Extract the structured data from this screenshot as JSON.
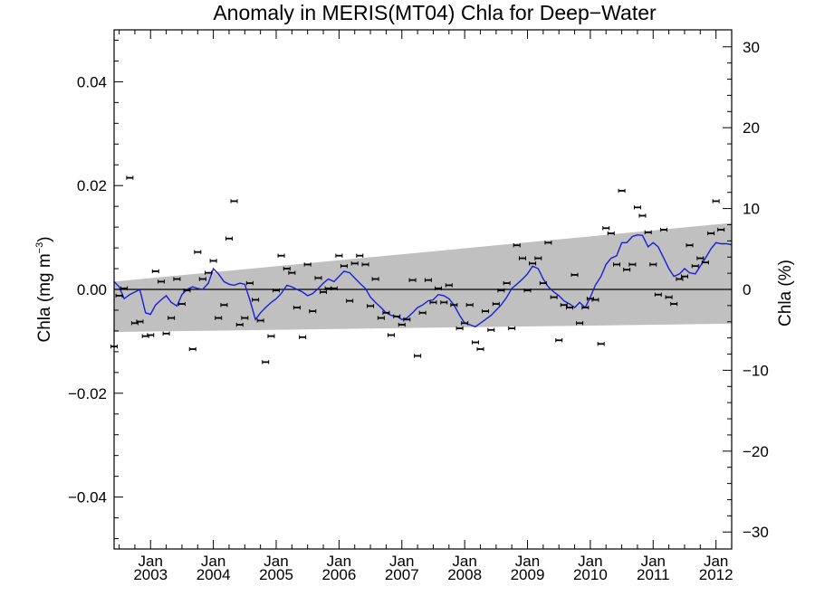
{
  "chart_data": {
    "type": "scatter",
    "title": "Anomaly in MERIS(MT04) Chla for Deep−Water",
    "ylabel_left": "Chla (mg m",
    "ylabel_left_sup": "−3",
    "ylabel_left_close": ")",
    "ylabel_right": "Chla (%)",
    "xlim": [
      2002.42,
      2012.25
    ],
    "ylim_left": [
      -0.05,
      0.05
    ],
    "ylim_right": [
      -32.1,
      32.1
    ],
    "x_ticks": [
      {
        "x": 2003.0,
        "label": "Jan",
        "year": "2003"
      },
      {
        "x": 2004.0,
        "label": "Jan",
        "year": "2004"
      },
      {
        "x": 2005.0,
        "label": "Jan",
        "year": "2005"
      },
      {
        "x": 2006.0,
        "label": "Jan",
        "year": "2006"
      },
      {
        "x": 2007.0,
        "label": "Jan",
        "year": "2007"
      },
      {
        "x": 2008.0,
        "label": "Jan",
        "year": "2008"
      },
      {
        "x": 2009.0,
        "label": "Jan",
        "year": "2009"
      },
      {
        "x": 2010.0,
        "label": "Jan",
        "year": "2010"
      },
      {
        "x": 2011.0,
        "label": "Jan",
        "year": "2011"
      },
      {
        "x": 2012.0,
        "label": "Jan",
        "year": "2012"
      }
    ],
    "y_ticks_left": [
      {
        "v": 0.04,
        "label": "0.04"
      },
      {
        "v": 0.02,
        "label": "0.02"
      },
      {
        "v": 0.0,
        "label": "0.00"
      },
      {
        "v": -0.02,
        "label": "−0.02"
      },
      {
        "v": -0.04,
        "label": "−0.04"
      }
    ],
    "y_ticks_right": [
      {
        "v": 30,
        "label": "30"
      },
      {
        "v": 20,
        "label": "20"
      },
      {
        "v": 10,
        "label": "10"
      },
      {
        "v": 0,
        "label": "0"
      },
      {
        "v": -10,
        "label": "−10"
      },
      {
        "v": -20,
        "label": "−20"
      },
      {
        "v": -30,
        "label": "−30"
      }
    ],
    "trend_band": {
      "x": [
        2002.42,
        2012.25
      ],
      "upper": [
        0.0015,
        0.0128
      ],
      "lower": [
        -0.0082,
        -0.0066
      ]
    },
    "zero_line": 0.0,
    "points": [
      [
        2002.42,
        -0.011
      ],
      [
        2002.5,
        -0.0012
      ],
      [
        2002.58,
        0.0002
      ],
      [
        2002.67,
        0.0215
      ],
      [
        2002.75,
        -0.0065
      ],
      [
        2002.83,
        -0.0062
      ],
      [
        2002.92,
        -0.009
      ],
      [
        2003.0,
        -0.0088
      ],
      [
        2003.08,
        0.0035
      ],
      [
        2003.17,
        0.0015
      ],
      [
        2003.25,
        -0.0085
      ],
      [
        2003.33,
        -0.0055
      ],
      [
        2003.42,
        0.002
      ],
      [
        2003.5,
        -0.0028
      ],
      [
        2003.58,
        -0.0002
      ],
      [
        2003.67,
        -0.0115
      ],
      [
        2003.75,
        0.0072
      ],
      [
        2003.83,
        0.002
      ],
      [
        2003.92,
        0.0032
      ],
      [
        2004.0,
        0.0055
      ],
      [
        2004.08,
        -0.0055
      ],
      [
        2004.17,
        -0.003
      ],
      [
        2004.25,
        0.0098
      ],
      [
        2004.33,
        0.017
      ],
      [
        2004.42,
        -0.0068
      ],
      [
        2004.5,
        -0.0055
      ],
      [
        2004.58,
        0.0012
      ],
      [
        2004.67,
        -0.002
      ],
      [
        2004.75,
        -0.006
      ],
      [
        2004.83,
        -0.014
      ],
      [
        2004.92,
        -0.009
      ],
      [
        2005.0,
        -0.0002
      ],
      [
        2005.08,
        0.0065
      ],
      [
        2005.17,
        0.004
      ],
      [
        2005.25,
        0.0032
      ],
      [
        2005.33,
        -0.0035
      ],
      [
        2005.42,
        -0.0092
      ],
      [
        2005.5,
        0.0048
      ],
      [
        2005.58,
        -0.0042
      ],
      [
        2005.67,
        0.0022
      ],
      [
        2005.75,
        -0.0005
      ],
      [
        2005.83,
        0.0002
      ],
      [
        2005.92,
        0.0002
      ],
      [
        2006.0,
        0.0065
      ],
      [
        2006.08,
        0.0045
      ],
      [
        2006.17,
        -0.0022
      ],
      [
        2006.25,
        0.005
      ],
      [
        2006.33,
        0.0065
      ],
      [
        2006.42,
        0.0048
      ],
      [
        2006.5,
        -0.0032
      ],
      [
        2006.58,
        0.002
      ],
      [
        2006.67,
        -0.0055
      ],
      [
        2006.75,
        -0.0045
      ],
      [
        2006.83,
        -0.0088
      ],
      [
        2006.92,
        -0.0052
      ],
      [
        2007.0,
        -0.0068
      ],
      [
        2007.08,
        -0.0058
      ],
      [
        2007.17,
        0.0018
      ],
      [
        2007.25,
        -0.0128
      ],
      [
        2007.33,
        -0.0045
      ],
      [
        2007.42,
        0.0018
      ],
      [
        2007.5,
        -0.0025
      ],
      [
        2007.58,
        0.0002
      ],
      [
        2007.67,
        -0.0025
      ],
      [
        2007.75,
        0.0008
      ],
      [
        2007.83,
        -0.003
      ],
      [
        2007.92,
        -0.0075
      ],
      [
        2008.0,
        -0.0065
      ],
      [
        2008.08,
        -0.003
      ],
      [
        2008.17,
        -0.0102
      ],
      [
        2008.25,
        -0.0115
      ],
      [
        2008.33,
        -0.0042
      ],
      [
        2008.42,
        -0.0078
      ],
      [
        2008.5,
        -0.0028
      ],
      [
        2008.58,
        -0.0002
      ],
      [
        2008.67,
        0.0012
      ],
      [
        2008.75,
        -0.0075
      ],
      [
        2008.83,
        0.0085
      ],
      [
        2008.92,
        0.006
      ],
      [
        2009.0,
        -0.0002
      ],
      [
        2009.08,
        0.005
      ],
      [
        2009.17,
        0.006
      ],
      [
        2009.25,
        0.0012
      ],
      [
        2009.33,
        0.009
      ],
      [
        2009.42,
        -0.0015
      ],
      [
        2009.5,
        -0.0098
      ],
      [
        2009.58,
        -0.003
      ],
      [
        2009.67,
        -0.0035
      ],
      [
        2009.75,
        0.0028
      ],
      [
        2009.83,
        -0.0065
      ],
      [
        2009.92,
        -0.0035
      ],
      [
        2010.0,
        -0.0018
      ],
      [
        2010.08,
        -0.002
      ],
      [
        2010.17,
        -0.0105
      ],
      [
        2010.25,
        0.0118
      ],
      [
        2010.33,
        0.0108
      ],
      [
        2010.42,
        0.0048
      ],
      [
        2010.5,
        0.019
      ],
      [
        2010.58,
        0.0038
      ],
      [
        2010.67,
        0.0048
      ],
      [
        2010.75,
        0.0158
      ],
      [
        2010.83,
        0.0142
      ],
      [
        2010.92,
        0.011
      ],
      [
        2011.0,
        0.0048
      ],
      [
        2011.08,
        -0.001
      ],
      [
        2011.17,
        0.0115
      ],
      [
        2011.25,
        -0.0015
      ],
      [
        2011.33,
        -0.0028
      ],
      [
        2011.42,
        0.002
      ],
      [
        2011.5,
        0.0025
      ],
      [
        2011.58,
        0.0085
      ],
      [
        2011.67,
        0.0045
      ],
      [
        2011.75,
        0.006
      ],
      [
        2011.83,
        0.0052
      ],
      [
        2011.92,
        0.0108
      ],
      [
        2012.0,
        0.017
      ],
      [
        2012.08,
        0.0115
      ]
    ],
    "smooth_line": [
      [
        2002.42,
        0.0015
      ],
      [
        2002.5,
        0.0005
      ],
      [
        2002.58,
        -0.0018
      ],
      [
        2002.67,
        -0.001
      ],
      [
        2002.75,
        -0.0005
      ],
      [
        2002.83,
        0.0
      ],
      [
        2002.92,
        -0.0045
      ],
      [
        2003.0,
        -0.0048
      ],
      [
        2003.08,
        -0.003
      ],
      [
        2003.17,
        -0.002
      ],
      [
        2003.25,
        -0.0012
      ],
      [
        2003.33,
        -0.0025
      ],
      [
        2003.42,
        -0.0032
      ],
      [
        2003.5,
        -0.001
      ],
      [
        2003.58,
        0.0
      ],
      [
        2003.67,
        0.0005
      ],
      [
        2003.75,
        0.0002
      ],
      [
        2003.83,
        0.0
      ],
      [
        2003.92,
        0.0012
      ],
      [
        2004.0,
        0.004
      ],
      [
        2004.08,
        0.003
      ],
      [
        2004.17,
        0.0015
      ],
      [
        2004.25,
        0.001
      ],
      [
        2004.33,
        0.0008
      ],
      [
        2004.42,
        0.0012
      ],
      [
        2004.5,
        0.001
      ],
      [
        2004.58,
        -0.002
      ],
      [
        2004.67,
        -0.0058
      ],
      [
        2004.75,
        -0.0045
      ],
      [
        2004.83,
        -0.0035
      ],
      [
        2004.92,
        -0.0025
      ],
      [
        2005.0,
        -0.0018
      ],
      [
        2005.08,
        -0.0008
      ],
      [
        2005.17,
        0.0008
      ],
      [
        2005.25,
        0.0005
      ],
      [
        2005.33,
        0.0
      ],
      [
        2005.42,
        -0.0005
      ],
      [
        2005.5,
        -0.0012
      ],
      [
        2005.58,
        -0.0008
      ],
      [
        2005.67,
        0.0002
      ],
      [
        2005.75,
        0.0012
      ],
      [
        2005.83,
        0.002
      ],
      [
        2005.92,
        0.0015
      ],
      [
        2006.0,
        0.0025
      ],
      [
        2006.08,
        0.0035
      ],
      [
        2006.17,
        0.0032
      ],
      [
        2006.25,
        0.0022
      ],
      [
        2006.33,
        0.0012
      ],
      [
        2006.42,
        0.0002
      ],
      [
        2006.5,
        -0.0015
      ],
      [
        2006.58,
        -0.0025
      ],
      [
        2006.67,
        -0.0035
      ],
      [
        2006.75,
        -0.0045
      ],
      [
        2006.83,
        -0.005
      ],
      [
        2006.92,
        -0.0052
      ],
      [
        2007.0,
        -0.0058
      ],
      [
        2007.08,
        -0.0055
      ],
      [
        2007.17,
        -0.0045
      ],
      [
        2007.25,
        -0.0035
      ],
      [
        2007.33,
        -0.003
      ],
      [
        2007.42,
        -0.0022
      ],
      [
        2007.5,
        -0.002
      ],
      [
        2007.58,
        -0.001
      ],
      [
        2007.67,
        -0.0012
      ],
      [
        2007.75,
        -0.0018
      ],
      [
        2007.83,
        -0.003
      ],
      [
        2007.92,
        -0.005
      ],
      [
        2008.0,
        -0.0065
      ],
      [
        2008.08,
        -0.0068
      ],
      [
        2008.17,
        -0.0072
      ],
      [
        2008.25,
        -0.0065
      ],
      [
        2008.33,
        -0.0058
      ],
      [
        2008.42,
        -0.005
      ],
      [
        2008.5,
        -0.004
      ],
      [
        2008.58,
        -0.003
      ],
      [
        2008.67,
        -0.0015
      ],
      [
        2008.75,
        0.0002
      ],
      [
        2008.83,
        0.001
      ],
      [
        2008.92,
        0.002
      ],
      [
        2009.0,
        0.003
      ],
      [
        2009.08,
        0.0045
      ],
      [
        2009.17,
        0.004
      ],
      [
        2009.25,
        0.002
      ],
      [
        2009.33,
        0.0005
      ],
      [
        2009.42,
        -0.0005
      ],
      [
        2009.5,
        -0.0012
      ],
      [
        2009.58,
        -0.0022
      ],
      [
        2009.67,
        -0.0028
      ],
      [
        2009.75,
        -0.0035
      ],
      [
        2009.83,
        -0.0025
      ],
      [
        2009.92,
        -0.0035
      ],
      [
        2010.0,
        -0.0015
      ],
      [
        2010.08,
        0.0008
      ],
      [
        2010.17,
        0.0025
      ],
      [
        2010.25,
        0.0048
      ],
      [
        2010.33,
        0.006
      ],
      [
        2010.42,
        0.0065
      ],
      [
        2010.5,
        0.009
      ],
      [
        2010.58,
        0.009
      ],
      [
        2010.67,
        0.0102
      ],
      [
        2010.75,
        0.0105
      ],
      [
        2010.83,
        0.0104
      ],
      [
        2010.92,
        0.0082
      ],
      [
        2011.0,
        0.009
      ],
      [
        2011.08,
        0.0082
      ],
      [
        2011.17,
        0.006
      ],
      [
        2011.25,
        0.004
      ],
      [
        2011.33,
        0.0025
      ],
      [
        2011.42,
        0.003
      ],
      [
        2011.5,
        0.004
      ],
      [
        2011.58,
        0.0032
      ],
      [
        2011.67,
        0.003
      ],
      [
        2011.75,
        0.0045
      ],
      [
        2011.83,
        0.006
      ],
      [
        2011.92,
        0.0078
      ],
      [
        2012.0,
        0.009
      ],
      [
        2012.08,
        0.0088
      ],
      [
        2012.17,
        0.0088
      ],
      [
        2012.25,
        0.0086
      ]
    ],
    "colors": {
      "band": "#c0c0c0",
      "smooth_line": "#1c1cd8",
      "points": "#000000",
      "axes": "#000000"
    },
    "grid": false,
    "legend": "none"
  }
}
